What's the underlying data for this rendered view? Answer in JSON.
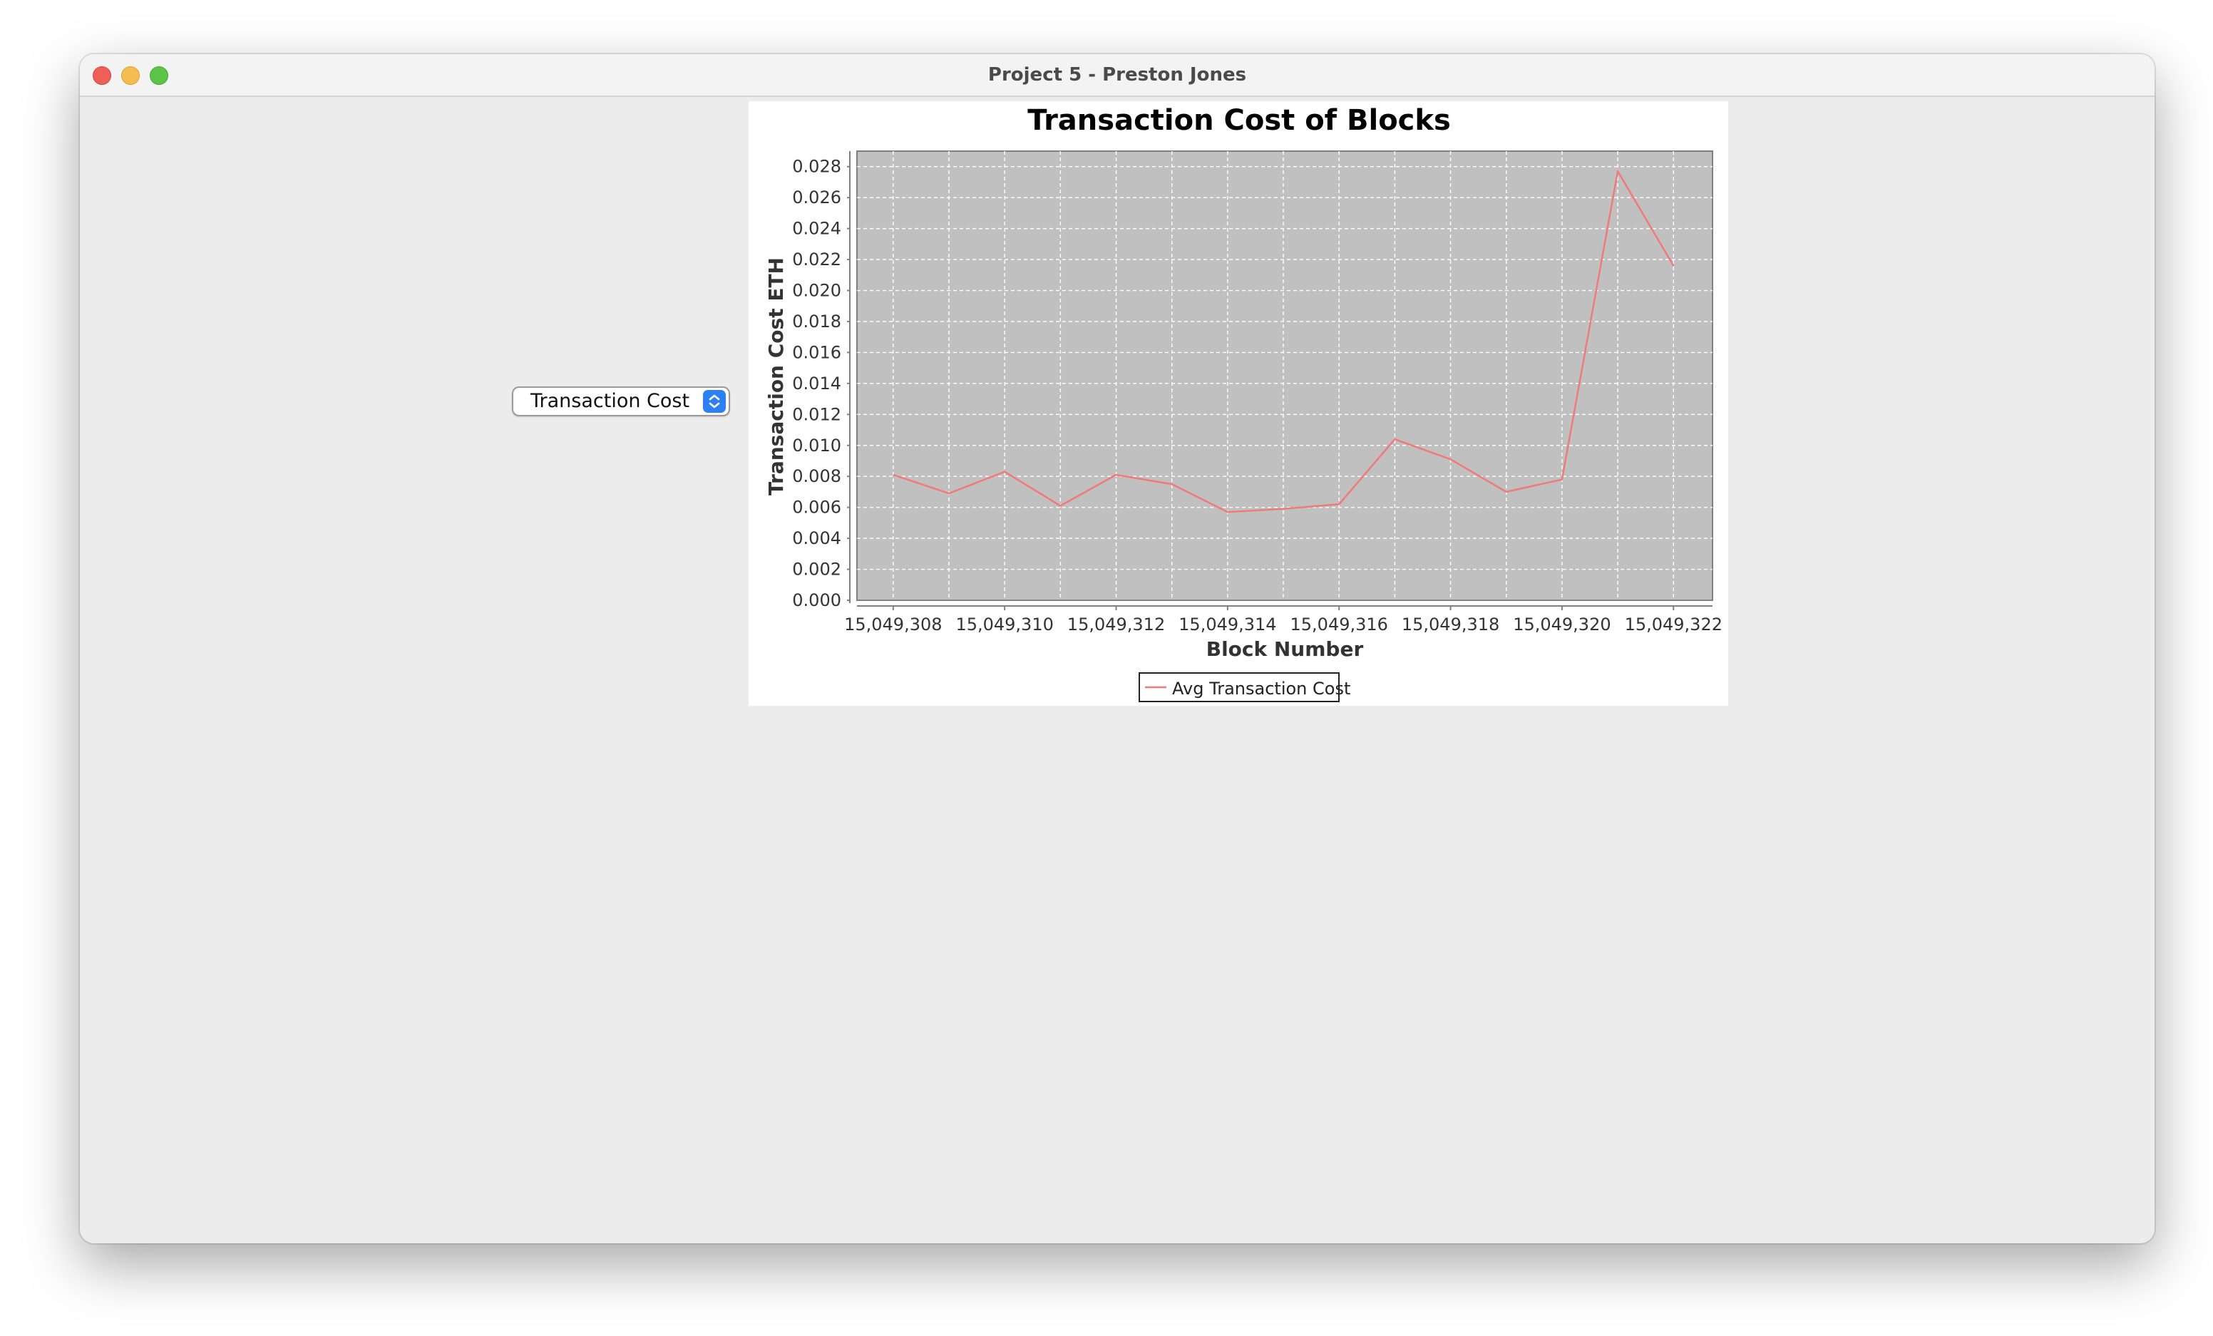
{
  "window": {
    "title": "Project 5 - Preston Jones"
  },
  "selector": {
    "selected": "Transaction Cost"
  },
  "icons": {
    "close": "close-traffic-light",
    "minimize": "minimize-traffic-light",
    "maximize": "maximize-traffic-light",
    "select": "chevron-up-down-icon"
  },
  "colors": {
    "plot_background": "#c0c0c0",
    "series_line": "#f07a7a",
    "select_accent": "#2d7ff5"
  },
  "chart_data": {
    "type": "line",
    "title": "Transaction Cost of Blocks",
    "xlabel": "Block Number",
    "ylabel": "Transaction Cost ETH",
    "x_ticks": [
      "15,049,308",
      "15,049,310",
      "15,049,312",
      "15,049,314",
      "15,049,316",
      "15,049,318",
      "15,049,320",
      "15,049,322"
    ],
    "y_ticks": [
      "0.000",
      "0.002",
      "0.004",
      "0.006",
      "0.008",
      "0.010",
      "0.012",
      "0.014",
      "0.016",
      "0.018",
      "0.020",
      "0.022",
      "0.024",
      "0.026",
      "0.028"
    ],
    "xlim": [
      15049307.35,
      15049322.7
    ],
    "ylim": [
      0,
      0.029
    ],
    "grid": true,
    "legend_position": "bottom-center",
    "series": [
      {
        "name": "Avg Transaction Cost",
        "x": [
          15049308,
          15049309,
          15049310,
          15049311,
          15049312,
          15049313,
          15049314,
          15049315,
          15049316,
          15049317,
          15049318,
          15049319,
          15049320,
          15049321,
          15049322
        ],
        "values": [
          0.0081,
          0.0069,
          0.0083,
          0.0061,
          0.0081,
          0.0075,
          0.0057,
          0.0059,
          0.0062,
          0.0104,
          0.0091,
          0.007,
          0.0078,
          0.0277,
          0.0216
        ]
      }
    ]
  }
}
